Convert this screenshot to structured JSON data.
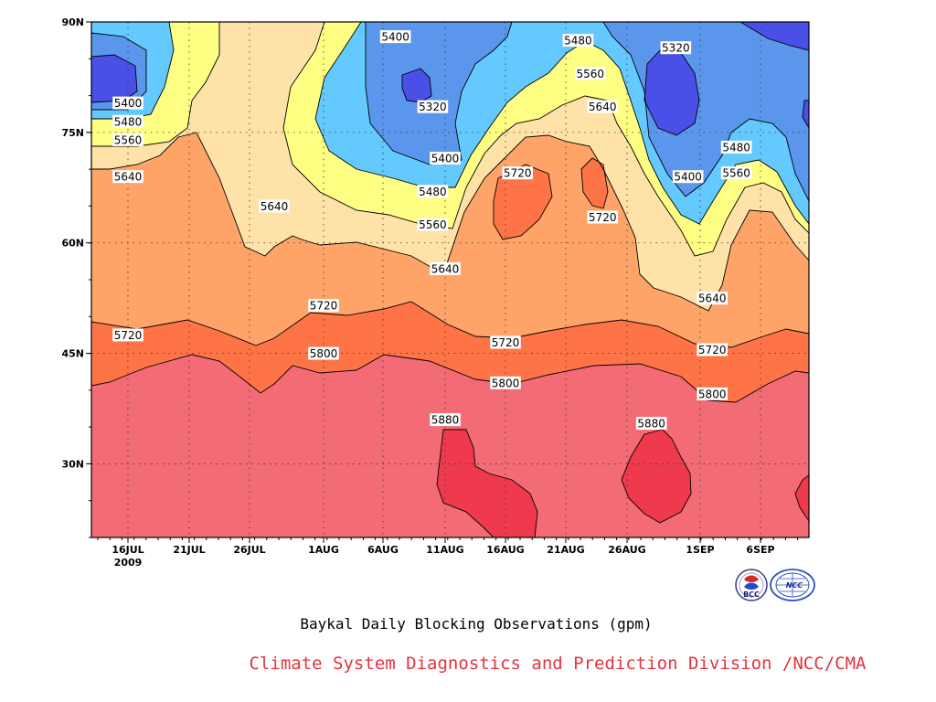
{
  "chart_data": {
    "type": "contour",
    "title": "Baykal Daily Blocking Observations (gpm)",
    "credit": "Climate System Diagnostics and Prediction Division /NCC/CMA",
    "x_axis": {
      "ticks": [
        "16JUL",
        "21JUL",
        "26JUL",
        "1AUG",
        "6AUG",
        "11AUG",
        "16AUG",
        "21AUG",
        "26AUG",
        "1SEP",
        "6SEP"
      ],
      "year_label": "2009"
    },
    "y_axis": {
      "ticks": [
        "30N",
        "45N",
        "60N",
        "75N",
        "90N"
      ],
      "ylim": [
        20,
        90
      ]
    },
    "contour_levels": [
      5320,
      5400,
      5480,
      5560,
      5640,
      5720,
      5800,
      5880
    ],
    "contour_labels": [
      {
        "text": "5400",
        "date": "16JUL",
        "lat": 79
      },
      {
        "text": "5480",
        "date": "16JUL",
        "lat": 76.5
      },
      {
        "text": "5560",
        "date": "16JUL",
        "lat": 74
      },
      {
        "text": "5640",
        "date": "16JUL",
        "lat": 69
      },
      {
        "text": "5720",
        "date": "16JUL",
        "lat": 47.5
      },
      {
        "text": "5640",
        "date": "28JUL",
        "lat": 65
      },
      {
        "text": "5720",
        "date": "1AUG",
        "lat": 51.5
      },
      {
        "text": "5800",
        "date": "1AUG",
        "lat": 45
      },
      {
        "text": "5400",
        "date": "7AUG",
        "lat": 88
      },
      {
        "text": "5320",
        "date": "10AUG",
        "lat": 78.5
      },
      {
        "text": "5400",
        "date": "11AUG",
        "lat": 71.5
      },
      {
        "text": "5480",
        "date": "10AUG",
        "lat": 67
      },
      {
        "text": "5560",
        "date": "10AUG",
        "lat": 62.5
      },
      {
        "text": "5640",
        "date": "11AUG",
        "lat": 56.5
      },
      {
        "text": "5880",
        "date": "11AUG",
        "lat": 36
      },
      {
        "text": "5720",
        "date": "17AUG",
        "lat": 69.5
      },
      {
        "text": "5720",
        "date": "16AUG",
        "lat": 46.5
      },
      {
        "text": "5800",
        "date": "16AUG",
        "lat": 41
      },
      {
        "text": "5480",
        "date": "22AUG",
        "lat": 87.5
      },
      {
        "text": "5560",
        "date": "23AUG",
        "lat": 83
      },
      {
        "text": "5640",
        "date": "24AUG",
        "lat": 78.5
      },
      {
        "text": "5720",
        "date": "24AUG",
        "lat": 63.5
      },
      {
        "text": "5880",
        "date": "28AUG",
        "lat": 35.5
      },
      {
        "text": "5320",
        "date": "30AUG",
        "lat": 86.5
      },
      {
        "text": "5400",
        "date": "31AUG",
        "lat": 69
      },
      {
        "text": "5480",
        "date": "4SEP",
        "lat": 73
      },
      {
        "text": "5560",
        "date": "4SEP",
        "lat": 69.5
      },
      {
        "text": "5640",
        "date": "2SEP",
        "lat": 52.5
      },
      {
        "text": "5720",
        "date": "2SEP",
        "lat": 45.5
      },
      {
        "text": "5800",
        "date": "2SEP",
        "lat": 39.5
      }
    ],
    "colors": {
      "band_5880_plus": "#ef3a4e",
      "band_5800": "#f26b75",
      "band_5720": "#fe7446",
      "band_5640": "#fea468",
      "band_5560": "#fee2a8",
      "band_5480": "#fefe82",
      "band_5400": "#63c9fe",
      "band_5320": "#5a97ec",
      "band_below_5320": "#4a4fe8"
    },
    "grid": true
  },
  "logos": [
    {
      "name": "bcc-logo",
      "text": "BCC"
    },
    {
      "name": "ncc-logo",
      "text": "NCC"
    }
  ]
}
